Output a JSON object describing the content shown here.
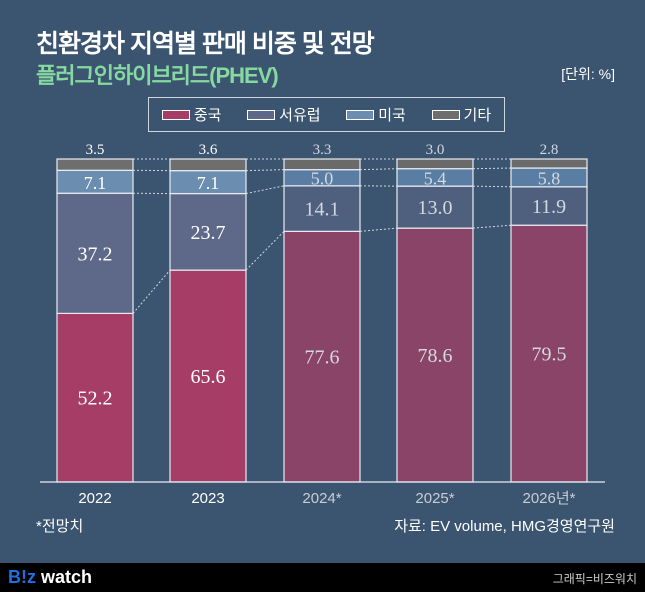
{
  "title": "친환경차 지역별 판매 비중 및 전망",
  "subtitle": "플러그인하이브리드(PHEV)",
  "unit": "[단위: %]",
  "note": "*전망치",
  "source": "자료: EV volume, HMG경영연구원",
  "footer": {
    "logo_b": "B!z",
    "logo_w": " watch",
    "credit": "그래픽=비즈워치"
  },
  "colors": {
    "china": "#a63d66",
    "china_f": "#8a4468",
    "europe": "#5e6888",
    "europe_f": "#4f5f7e",
    "us": "#6a8db0",
    "us_f": "#5a7ea3",
    "other": "#6e6e6e",
    "other_f": "#6a6a6a"
  },
  "chart_data": {
    "type": "bar",
    "stacked": true,
    "title": "친환경차 지역별 판매 비중 및 전망",
    "categories": [
      "2022",
      "2023",
      "2024*",
      "2025*",
      "2026년*"
    ],
    "forecast": [
      false,
      false,
      true,
      true,
      true
    ],
    "ylim": [
      0,
      100
    ],
    "legend": [
      "중국",
      "서유럽",
      "미국",
      "기타"
    ],
    "legend_position": "top-center",
    "series": [
      {
        "name": "중국",
        "values": [
          52.2,
          65.6,
          77.6,
          78.6,
          79.5
        ]
      },
      {
        "name": "서유럽",
        "values": [
          37.2,
          23.7,
          14.1,
          13.0,
          11.9
        ]
      },
      {
        "name": "미국",
        "values": [
          7.1,
          7.1,
          5.0,
          5.4,
          5.8
        ]
      },
      {
        "name": "기타",
        "values": [
          3.5,
          3.6,
          3.3,
          3.0,
          2.8
        ]
      }
    ]
  }
}
